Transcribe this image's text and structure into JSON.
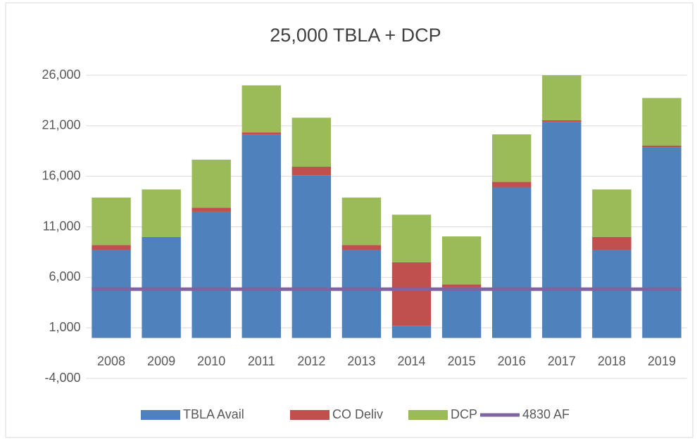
{
  "chart_data": {
    "type": "bar",
    "stacked": true,
    "title": "25,000 TBLA + DCP",
    "categories": [
      "2008",
      "2009",
      "2010",
      "2011",
      "2012",
      "2013",
      "2014",
      "2015",
      "2016",
      "2017",
      "2018",
      "2019"
    ],
    "series": [
      {
        "name": "TBLA Avail",
        "color": "#4f81bd",
        "values": [
          8700,
          10000,
          12500,
          20100,
          16100,
          8700,
          1200,
          5000,
          14900,
          21350,
          8700,
          18850
        ]
      },
      {
        "name": "CO Deliv",
        "color": "#c0504d",
        "values": [
          500,
          0,
          400,
          250,
          850,
          500,
          6300,
          300,
          550,
          200,
          1300,
          200
        ]
      },
      {
        "name": "DCP",
        "color": "#9bbb59",
        "values": [
          4700,
          4700,
          4750,
          4650,
          4850,
          4700,
          4700,
          4750,
          4700,
          4450,
          4700,
          4700
        ]
      },
      {
        "name": "4830 AF",
        "color": "#8064a2",
        "type": "line",
        "values": [
          4830,
          4830,
          4830,
          4830,
          4830,
          4830,
          4830,
          4830,
          4830,
          4830,
          4830,
          4830
        ]
      }
    ],
    "ylim": [
      -4000,
      26000
    ],
    "yticks": [
      {
        "value": -4000,
        "label": "-4,000"
      },
      {
        "value": 1000,
        "label": "1,000"
      },
      {
        "value": 6000,
        "label": "6,000"
      },
      {
        "value": 11000,
        "label": "11,000"
      },
      {
        "value": 16000,
        "label": "16,000"
      },
      {
        "value": 21000,
        "label": "21,000"
      },
      {
        "value": 26000,
        "label": "26,000"
      }
    ],
    "grid": true,
    "legend": "bottom"
  }
}
